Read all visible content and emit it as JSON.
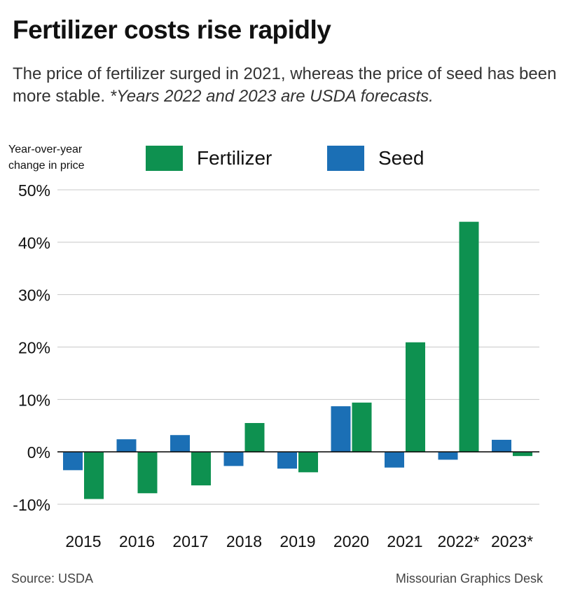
{
  "title": "Fertilizer costs rise rapidly",
  "subtitle": "The price of fertilizer surged in 2021, whereas the price of seed has been more stable.",
  "subtitle_note": "*Years 2022 and 2023 are USDA forecasts.",
  "y_axis_label": "Year-over-year change in price",
  "legend": [
    {
      "label": "Fertilizer",
      "color": "#0e9150"
    },
    {
      "label": "Seed",
      "color": "#1b6fb5"
    }
  ],
  "source": "Source: USDA",
  "credit": "Missourian Graphics Desk",
  "chart_data": {
    "type": "bar",
    "title": "Fertilizer costs rise rapidly",
    "ylabel": "Year-over-year change in price",
    "categories": [
      "2015",
      "2016",
      "2017",
      "2018",
      "2019",
      "2020",
      "2021",
      "2022*",
      "2023*"
    ],
    "series": [
      {
        "name": "Seed",
        "color": "#1b6fb5",
        "values": [
          -3.5,
          2.4,
          3.2,
          -2.7,
          -3.2,
          8.7,
          -3.0,
          -1.5,
          2.3
        ]
      },
      {
        "name": "Fertilizer",
        "color": "#0e9150",
        "values": [
          -9.0,
          -7.9,
          -6.4,
          5.5,
          -3.9,
          9.4,
          20.9,
          43.9,
          -0.8
        ]
      }
    ],
    "ylim": [
      -10,
      50
    ],
    "yticks": [
      -10,
      0,
      10,
      20,
      30,
      40,
      50
    ],
    "ytick_labels": [
      "-10%",
      "0%",
      "10%",
      "20%",
      "30%",
      "40%",
      "50%"
    ],
    "grid": true,
    "legend_position": "top"
  }
}
